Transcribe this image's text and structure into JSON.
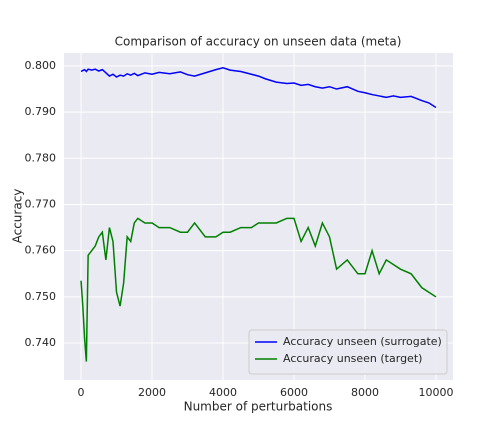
{
  "chart_data": {
    "type": "line",
    "title": "Comparison of accuracy on unseen data (meta)",
    "x_label": "Number of perturbations",
    "y_label": "Accuracy",
    "x": [
      0,
      50,
      100,
      150,
      200,
      300,
      400,
      500,
      600,
      700,
      800,
      900,
      1000,
      1100,
      1200,
      1300,
      1400,
      1500,
      1600,
      1800,
      2000,
      2200,
      2500,
      2800,
      3000,
      3200,
      3500,
      3800,
      4000,
      4200,
      4500,
      4800,
      5000,
      5200,
      5500,
      5800,
      6000,
      6200,
      6400,
      6600,
      6800,
      7000,
      7200,
      7500,
      7800,
      8000,
      8200,
      8400,
      8600,
      8800,
      9000,
      9300,
      9600,
      9800,
      10000
    ],
    "series": [
      {
        "name": "Accuracy unseen (surrogate)",
        "color": "#0000ff",
        "values": [
          0.7988,
          0.799,
          0.7992,
          0.7988,
          0.7993,
          0.7991,
          0.7993,
          0.7989,
          0.7992,
          0.7985,
          0.7978,
          0.7982,
          0.7976,
          0.798,
          0.7978,
          0.7983,
          0.798,
          0.7984,
          0.7979,
          0.7985,
          0.7982,
          0.7986,
          0.7983,
          0.7987,
          0.7981,
          0.7978,
          0.7985,
          0.7992,
          0.7996,
          0.7991,
          0.7988,
          0.7982,
          0.7978,
          0.7972,
          0.7965,
          0.7962,
          0.7963,
          0.7958,
          0.796,
          0.7955,
          0.7952,
          0.7955,
          0.795,
          0.7955,
          0.7945,
          0.7942,
          0.7938,
          0.7935,
          0.7932,
          0.7935,
          0.7932,
          0.7934,
          0.7925,
          0.792,
          0.791
        ]
      },
      {
        "name": "Accuracy unseen (target)",
        "color": "#008000",
        "values": [
          0.7535,
          0.748,
          0.741,
          0.736,
          0.759,
          0.76,
          0.761,
          0.763,
          0.764,
          0.758,
          0.765,
          0.762,
          0.751,
          0.748,
          0.753,
          0.763,
          0.762,
          0.766,
          0.767,
          0.766,
          0.766,
          0.765,
          0.765,
          0.764,
          0.764,
          0.766,
          0.763,
          0.763,
          0.764,
          0.764,
          0.765,
          0.765,
          0.766,
          0.766,
          0.766,
          0.767,
          0.767,
          0.762,
          0.765,
          0.761,
          0.766,
          0.763,
          0.756,
          0.758,
          0.755,
          0.755,
          0.76,
          0.755,
          0.758,
          0.757,
          0.756,
          0.755,
          0.752,
          0.751,
          0.75
        ]
      }
    ],
    "xlim": [
      -480,
      10480
    ],
    "ylim": [
      0.732,
      0.8028
    ],
    "xticks": [
      0,
      2000,
      4000,
      6000,
      8000,
      10000
    ],
    "yticks": [
      {
        "value": 0.74,
        "label": "0.740"
      },
      {
        "value": 0.75,
        "label": "0.750"
      },
      {
        "value": 0.76,
        "label": "0.760"
      },
      {
        "value": 0.77,
        "label": "0.770"
      },
      {
        "value": 0.78,
        "label": "0.780"
      },
      {
        "value": 0.79,
        "label": "0.790"
      },
      {
        "value": 0.8,
        "label": "0.800"
      }
    ],
    "grid": true,
    "legend": "lower right"
  }
}
